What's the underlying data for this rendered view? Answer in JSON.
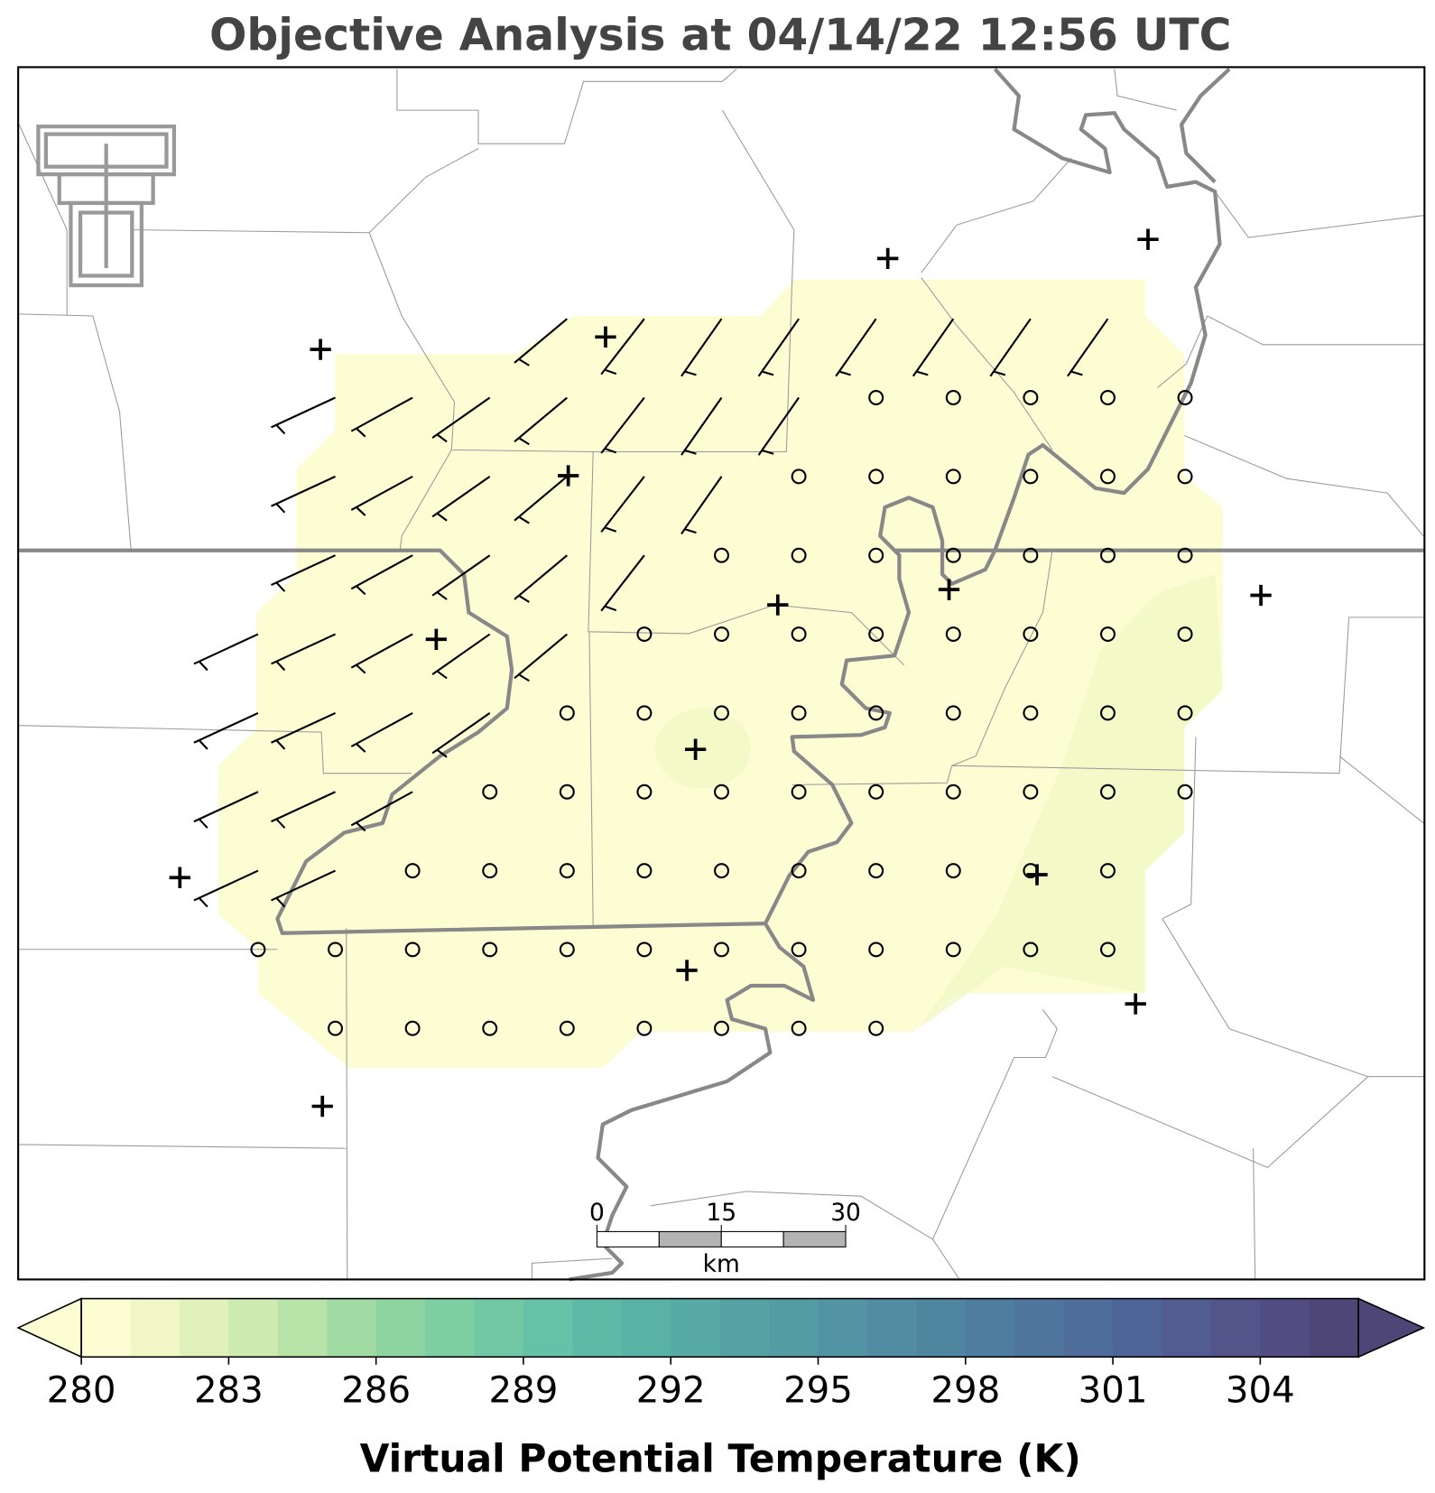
{
  "title": "Objective Analysis at 04/14/22 12:56 UTC",
  "colorbar": {
    "label": "Virtual Potential Temperature (K)",
    "lim": [
      280,
      306
    ],
    "ticks": [
      280,
      283,
      286,
      289,
      292,
      295,
      298,
      301,
      304
    ],
    "colors": [
      "#fcfdd3",
      "#f1f7c6",
      "#e1f1bb",
      "#cdeab0",
      "#b8e3a8",
      "#a1dba3",
      "#8dd4a0",
      "#7dcea2",
      "#72c8a4",
      "#67c1a6",
      "#5fb9a7",
      "#5ab2a7",
      "#57aaa6",
      "#55a3a5",
      "#549ba4",
      "#5294a3",
      "#518ca2",
      "#5085a0",
      "#4f7d9f",
      "#4f759d",
      "#4f6d9b",
      "#506597",
      "#525c91",
      "#52548a",
      "#514c81",
      "#4e4676"
    ],
    "extend": "both"
  },
  "scale_bar": {
    "ticks": [
      0,
      15,
      30
    ],
    "units": "km"
  }
}
